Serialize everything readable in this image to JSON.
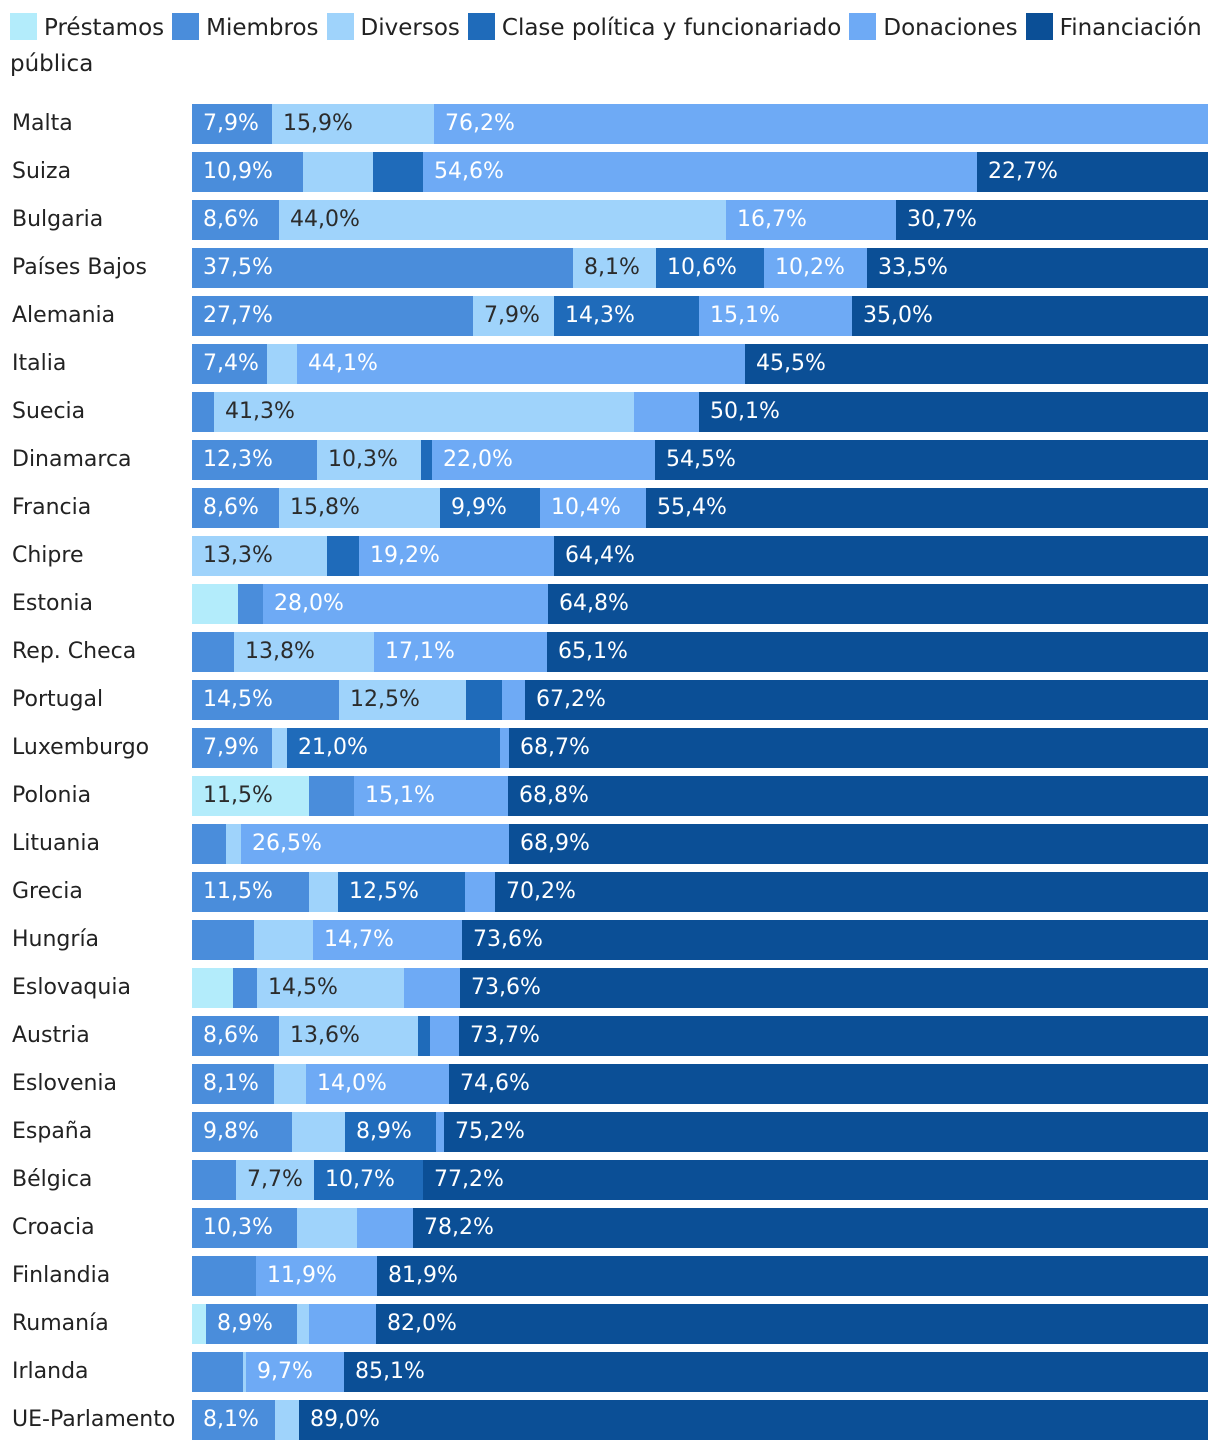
{
  "chart_data": {
    "type": "bar",
    "orientation": "horizontal",
    "stacked": true,
    "normalized_to": 100,
    "legend_position": "top",
    "xlim": [
      0,
      100
    ],
    "unit": "%",
    "legend": [
      {
        "name": "Préstamos",
        "color": "#b3ecfb"
      },
      {
        "name": "Miembros",
        "color": "#4a8ddb"
      },
      {
        "name": "Diversos",
        "color": "#9fd3fb"
      },
      {
        "name": "Clase política y funcionariado",
        "color": "#1f6bba"
      },
      {
        "name": "Donaciones",
        "color": "#6eaaf5"
      },
      {
        "name": "Financiación pública",
        "color": "#0b4f96"
      }
    ],
    "categories": [
      "Malta",
      "Suiza",
      "Bulgaria",
      "Países Bajos",
      "Alemania",
      "Italia",
      "Suecia",
      "Dinamarca",
      "Francia",
      "Chipre",
      "Estonia",
      "Rep. Checa",
      "Portugal",
      "Luxemburgo",
      "Polonia",
      "Lituania",
      "Grecia",
      "Hungría",
      "Eslovaquia",
      "Austria",
      "Eslovenia",
      "España",
      "Bélgica",
      "Croacia",
      "Finlandia",
      "Rumanía",
      "Irlanda",
      "UE-Parlamento"
    ],
    "series": [
      {
        "name": "Préstamos",
        "values": [
          0,
          0,
          0,
          0,
          0,
          0,
          0,
          0,
          0,
          0,
          4.5,
          0,
          0,
          0,
          11.5,
          0,
          0,
          0,
          4.0,
          0,
          0,
          0,
          0,
          0,
          0,
          1.4,
          0,
          0
        ],
        "labels": [
          "",
          "",
          "",
          "",
          "",
          "",
          "",
          "",
          "",
          "",
          "",
          "",
          "",
          "",
          "11,5%",
          "",
          "",
          "",
          "",
          "",
          "",
          "",
          "",
          "",
          "",
          "",
          "",
          ""
        ]
      },
      {
        "name": "Miembros",
        "values": [
          7.9,
          10.9,
          8.6,
          37.5,
          27.7,
          7.4,
          2.2,
          12.3,
          8.6,
          0,
          2.5,
          4.1,
          14.5,
          7.9,
          4.4,
          3.4,
          11.5,
          6.1,
          2.4,
          8.6,
          8.1,
          9.8,
          4.3,
          10.3,
          6.3,
          8.9,
          5.0,
          8.1
        ],
        "labels": [
          "7,9%",
          "10,9%",
          "8,6%",
          "37,5%",
          "27,7%",
          "7,4%",
          "",
          "12,3%",
          "8,6%",
          "",
          "",
          "",
          "14,5%",
          "7,9%",
          "",
          "",
          "11,5%",
          "",
          "",
          "8,6%",
          "8,1%",
          "9,8%",
          "",
          "10,3%",
          "",
          "8,9%",
          "",
          "8,1%"
        ]
      },
      {
        "name": "Diversos",
        "values": [
          15.9,
          6.9,
          44.0,
          8.1,
          7.9,
          2.9,
          41.3,
          10.3,
          15.8,
          13.3,
          0,
          13.8,
          12.5,
          1.4,
          0,
          1.4,
          2.9,
          5.8,
          14.5,
          13.6,
          3.1,
          5.3,
          7.7,
          5.9,
          0,
          1.2,
          0.3,
          2.4
        ],
        "labels": [
          "15,9%",
          "",
          "44,0%",
          "8,1%",
          "7,9%",
          "",
          "41,3%",
          "10,3%",
          "15,8%",
          "13,3%",
          "",
          "13,8%",
          "12,5%",
          "",
          "",
          "",
          "",
          "",
          "14,5%",
          "13,6%",
          "",
          "",
          "7,7%",
          "",
          "",
          "",
          "",
          ""
        ]
      },
      {
        "name": "Clase política y funcionariado",
        "values": [
          0,
          4.9,
          0,
          10.6,
          14.3,
          0,
          0,
          1.0,
          9.9,
          3.1,
          0,
          0,
          3.5,
          21.0,
          0,
          0,
          12.5,
          0,
          0,
          1.2,
          0,
          8.9,
          10.7,
          0,
          0,
          0,
          0,
          0
        ],
        "labels": [
          "",
          "",
          "",
          "10,6%",
          "14,3%",
          "",
          "",
          "",
          "9,9%",
          "",
          "",
          "",
          "",
          "21,0%",
          "",
          "",
          "12,5%",
          "",
          "",
          "",
          "",
          "8,9%",
          "10,7%",
          "",
          "",
          "",
          "",
          ""
        ]
      },
      {
        "name": "Donaciones",
        "values": [
          76.2,
          54.6,
          16.7,
          10.2,
          15.1,
          44.1,
          6.4,
          22.0,
          10.4,
          19.2,
          28.0,
          17.1,
          2.3,
          0.9,
          15.1,
          26.5,
          2.9,
          14.7,
          5.5,
          2.9,
          14.0,
          0.8,
          0,
          5.5,
          11.9,
          6.6,
          9.7,
          0
        ],
        "labels": [
          "76,2%",
          "54,6%",
          "16,7%",
          "10,2%",
          "15,1%",
          "44,1%",
          "",
          "22,0%",
          "10,4%",
          "19,2%",
          "28,0%",
          "17,1%",
          "",
          "",
          "15,1%",
          "26,5%",
          "",
          "14,7%",
          "",
          "",
          "14,0%",
          "",
          "",
          "",
          "11,9%",
          "",
          "9,7%",
          ""
        ]
      },
      {
        "name": "Financiación pública",
        "values": [
          0,
          22.7,
          30.7,
          33.5,
          35.0,
          45.5,
          50.1,
          54.5,
          55.4,
          64.4,
          64.8,
          65.1,
          67.2,
          68.7,
          68.8,
          68.9,
          70.2,
          73.6,
          73.6,
          73.7,
          74.6,
          75.2,
          77.2,
          78.2,
          81.9,
          82.0,
          85.1,
          89.0
        ],
        "labels": [
          "",
          "22,7%",
          "30,7%",
          "33,5%",
          "35,0%",
          "45,5%",
          "50,1%",
          "54,5%",
          "55,4%",
          "64,4%",
          "64,8%",
          "65,1%",
          "67,2%",
          "68,7%",
          "68,8%",
          "68,9%",
          "70,2%",
          "73,6%",
          "73,6%",
          "73,7%",
          "74,6%",
          "75,2%",
          "77,2%",
          "78,2%",
          "81,9%",
          "82,0%",
          "85,1%",
          "89,0%"
        ]
      }
    ]
  }
}
